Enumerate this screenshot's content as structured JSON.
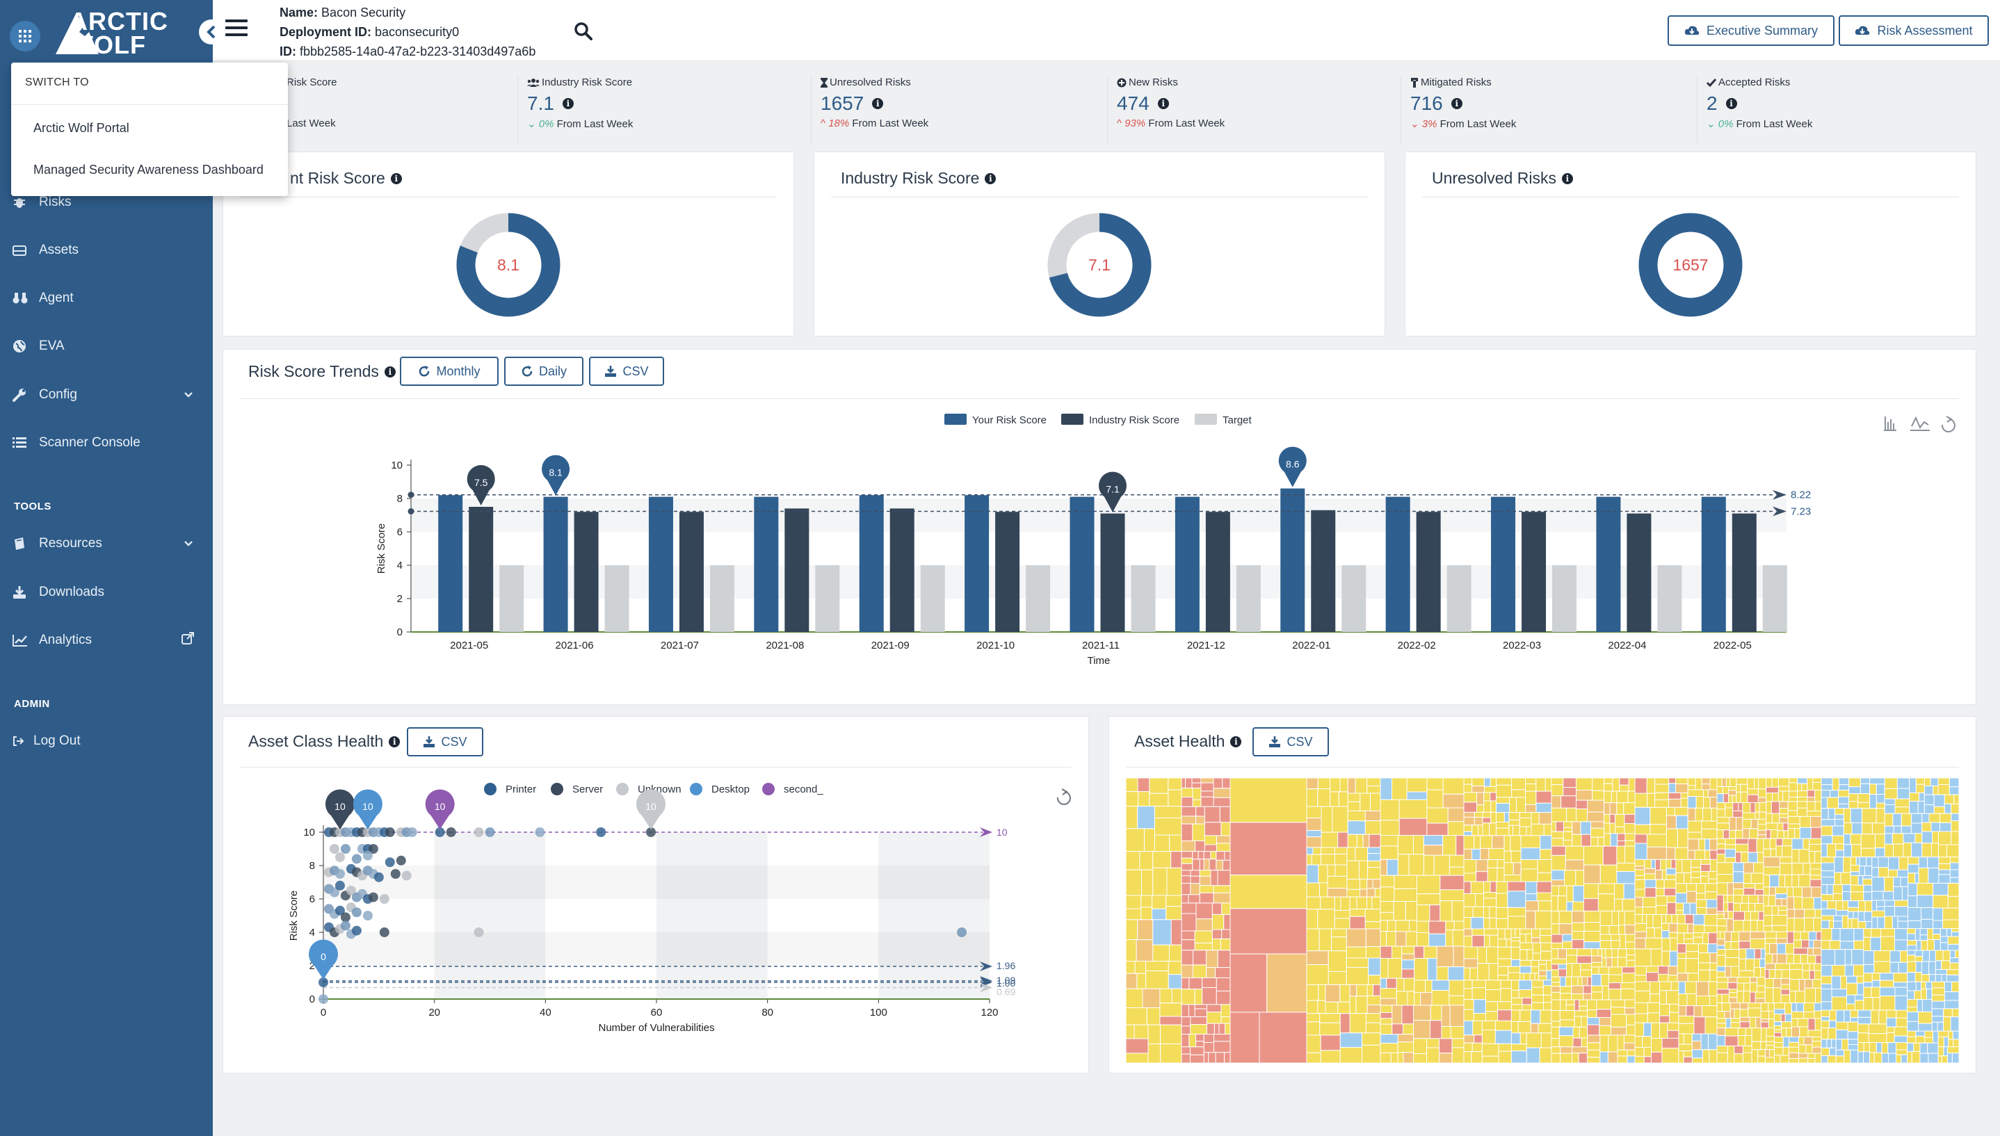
{
  "sidebar": {
    "logo_line1": "ARCTIC",
    "logo_line2": "WOLF",
    "nav": [
      {
        "label": "Risks"
      },
      {
        "label": "Assets"
      },
      {
        "label": "Agent"
      },
      {
        "label": "EVA"
      },
      {
        "label": "Config"
      },
      {
        "label": "Scanner Console"
      }
    ],
    "tools_title": "TOOLS",
    "tools": [
      {
        "label": "Resources"
      },
      {
        "label": "Downloads"
      },
      {
        "label": "Analytics"
      }
    ],
    "admin_title": "ADMIN",
    "admin": [
      {
        "label": "Log Out"
      }
    ]
  },
  "switch_menu": {
    "title": "SWITCH TO",
    "items": [
      "Arctic Wolf Portal",
      "Managed Security Awareness Dashboard"
    ]
  },
  "header": {
    "name_label": "Name:",
    "name_value": "Bacon Security",
    "deployment_label": "Deployment ID:",
    "deployment_value": "baconsecurity0",
    "id_label": "ID:",
    "id_value": "fbbb2585-14a0-47a2-b223-31403d497a6b",
    "btn_exec": "Executive Summary",
    "btn_risk": "Risk Assessment"
  },
  "stats": [
    {
      "label": "Risk Score",
      "value": "",
      "pct": "",
      "suffix": "Last Week"
    },
    {
      "label": "Industry Risk Score",
      "value": "7.1",
      "pct": "0%",
      "suffix": "From Last Week",
      "dir": "flat"
    },
    {
      "label": "Unresolved Risks",
      "value": "1657",
      "pct": "18%",
      "suffix": "From Last Week",
      "dir": "up"
    },
    {
      "label": "New Risks",
      "value": "474",
      "pct": "93%",
      "suffix": "From Last Week",
      "dir": "up"
    },
    {
      "label": "Mitigated Risks",
      "value": "716",
      "pct": "3%",
      "suffix": "From Last Week",
      "dir": "down"
    },
    {
      "label": "Accepted Risks",
      "value": "2",
      "pct": "0%",
      "suffix": "From Last Week",
      "dir": "flat"
    }
  ],
  "gauges": [
    {
      "title": "nt Risk Score",
      "value": "8.1",
      "pct": 81
    },
    {
      "title": "Industry Risk Score",
      "value": "7.1",
      "pct": 71
    },
    {
      "title": "Unresolved Risks",
      "value": "1657",
      "pct": 100
    }
  ],
  "trends": {
    "title": "Risk Score Trends",
    "btn_monthly": "Monthly",
    "btn_daily": "Daily",
    "btn_csv": "CSV"
  },
  "asset_class": {
    "title": "Asset Class Health",
    "btn_csv": "CSV"
  },
  "asset_health": {
    "title": "Asset Health",
    "btn_csv": "CSV"
  },
  "colors": {
    "brand": "#2e5b88",
    "your": "#2e5f8f",
    "industry": "#344558",
    "target": "#cfd2d5"
  },
  "chart_data": [
    {
      "type": "bar",
      "title": "Risk Score Trends",
      "xlabel": "Time",
      "ylabel": "Risk Score",
      "ylim": [
        0,
        10
      ],
      "yticks": [
        0,
        2,
        4,
        6,
        8,
        10
      ],
      "categories": [
        "2021-05",
        "2021-06",
        "2021-07",
        "2021-08",
        "2021-09",
        "2021-10",
        "2021-11",
        "2021-12",
        "2022-01",
        "2022-02",
        "2022-03",
        "2022-04",
        "2022-05"
      ],
      "series": [
        {
          "name": "Your Risk Score",
          "values": [
            8.2,
            8.1,
            8.1,
            8.1,
            8.2,
            8.2,
            8.1,
            8.1,
            8.6,
            8.1,
            8.1,
            8.1,
            8.1
          ]
        },
        {
          "name": "Industry Risk Score",
          "values": [
            7.5,
            7.2,
            7.2,
            7.4,
            7.4,
            7.2,
            7.1,
            7.2,
            7.3,
            7.2,
            7.2,
            7.1,
            7.1
          ]
        },
        {
          "name": "Target",
          "values": [
            4,
            4,
            4,
            4,
            4,
            4,
            4,
            4,
            4,
            4,
            4,
            4,
            4
          ]
        }
      ],
      "markers": [
        {
          "category": "2021-05",
          "series": "Industry Risk Score",
          "label": "7.5"
        },
        {
          "category": "2021-06",
          "series": "Your Risk Score",
          "label": "8.1"
        },
        {
          "category": "2021-11",
          "series": "Industry Risk Score",
          "label": "7.1"
        },
        {
          "category": "2022-01",
          "series": "Your Risk Score",
          "label": "8.6"
        }
      ],
      "reference_lines": [
        {
          "value": 8.22,
          "label": "8.22"
        },
        {
          "value": 7.23,
          "label": "7.23"
        }
      ]
    },
    {
      "type": "scatter",
      "title": "Asset Class Health",
      "xlabel": "Number of Vulnerabilities",
      "ylabel": "Risk Score",
      "xlim": [
        0,
        120
      ],
      "ylim": [
        0,
        10
      ],
      "xticks": [
        0,
        20,
        40,
        60,
        80,
        100,
        120
      ],
      "yticks": [
        0,
        2,
        4,
        6,
        8,
        10
      ],
      "legend": [
        "Printer",
        "Server",
        "Unknown",
        "Desktop",
        "second_"
      ],
      "legend_colors": [
        "#2e5f8f",
        "#3b4a5c",
        "#c5c8cc",
        "#4f93d1",
        "#8e5bb0"
      ],
      "points": [
        [
          1,
          10
        ],
        [
          2,
          10
        ],
        [
          3,
          10
        ],
        [
          4,
          10
        ],
        [
          5,
          10
        ],
        [
          6,
          10
        ],
        [
          7,
          10
        ],
        [
          8,
          10
        ],
        [
          9,
          10
        ],
        [
          10,
          10
        ],
        [
          11,
          10
        ],
        [
          12,
          10
        ],
        [
          14,
          10
        ],
        [
          15,
          10
        ],
        [
          16,
          10
        ],
        [
          21,
          10
        ],
        [
          23,
          10
        ],
        [
          28,
          10
        ],
        [
          30,
          10
        ],
        [
          39,
          10
        ],
        [
          50,
          10
        ],
        [
          59,
          10
        ],
        [
          2,
          9
        ],
        [
          4,
          9
        ],
        [
          7,
          9
        ],
        [
          8,
          9
        ],
        [
          9,
          9
        ],
        [
          3,
          8.5
        ],
        [
          6,
          8.4
        ],
        [
          8,
          8.6
        ],
        [
          12,
          8.2
        ],
        [
          14,
          8.3
        ],
        [
          1,
          7.6
        ],
        [
          2,
          7.7
        ],
        [
          3,
          7.5
        ],
        [
          5,
          7.8
        ],
        [
          6,
          7.6
        ],
        [
          7,
          7.4
        ],
        [
          8,
          7.7
        ],
        [
          9,
          7.5
        ],
        [
          10,
          7.3
        ],
        [
          13,
          7.5
        ],
        [
          15,
          7.4
        ],
        [
          1,
          6.6
        ],
        [
          2,
          6.4
        ],
        [
          3,
          6.8
        ],
        [
          4,
          6.2
        ],
        [
          5,
          6.5
        ],
        [
          6,
          6.1
        ],
        [
          7,
          6.3
        ],
        [
          8,
          6.0
        ],
        [
          9,
          6.1
        ],
        [
          11,
          6.0
        ],
        [
          1,
          5.4
        ],
        [
          2,
          5.1
        ],
        [
          3,
          5.3
        ],
        [
          4,
          4.9
        ],
        [
          5,
          5.5
        ],
        [
          6,
          5.2
        ],
        [
          8,
          5.0
        ],
        [
          1,
          4.3
        ],
        [
          2,
          4.0
        ],
        [
          3,
          4.2
        ],
        [
          4,
          4.4
        ],
        [
          5,
          3.9
        ],
        [
          6,
          4.1
        ],
        [
          11,
          4.0
        ],
        [
          28,
          4.0
        ],
        [
          115,
          4.0
        ],
        [
          0,
          0
        ],
        [
          0,
          1
        ]
      ],
      "markers": [
        {
          "x": 3,
          "y": 10,
          "label": "10",
          "series": "Server"
        },
        {
          "x": 8,
          "y": 10,
          "label": "10",
          "series": "Desktop"
        },
        {
          "x": 21,
          "y": 10,
          "label": "10",
          "series": "second_"
        },
        {
          "x": 59,
          "y": 10,
          "label": "10",
          "series": "Unknown"
        },
        {
          "x": 0,
          "y": 1,
          "label": "0",
          "series": "Desktop"
        }
      ],
      "reference_lines": [
        {
          "value": 10,
          "label": "10"
        },
        {
          "value": 1.96,
          "label": "1.96"
        },
        {
          "value": 1.09,
          "label": "1.09"
        },
        {
          "value": 1.0,
          "label": "1.00"
        },
        {
          "value": 0.69,
          "label": "0.69"
        }
      ]
    }
  ]
}
